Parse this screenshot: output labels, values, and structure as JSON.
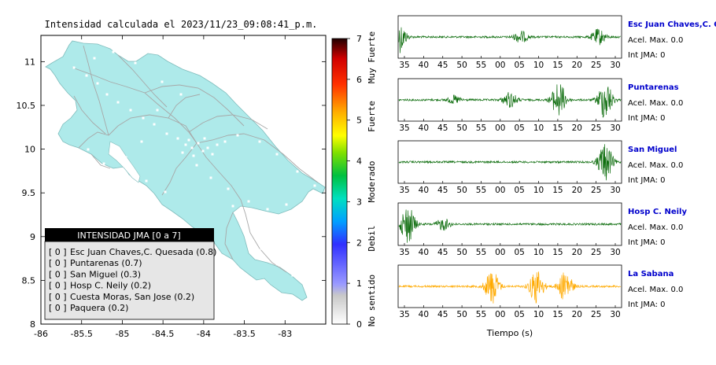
{
  "title": "Intensidad calculada el 2023/11/23_09:08:41_p.m.",
  "colors": {
    "land": "#aeeaea",
    "roads": "#a7a7a7",
    "trace_default": "#0f6e0f",
    "trace_highlight": "#ffaa00",
    "station_name": "#0000cc",
    "legend_header_bg": "#000000",
    "legend_bg": "#e6e6e6"
  },
  "map": {
    "x_ticks": [
      "-86",
      "-85.5",
      "-85",
      "-84.5",
      "-84",
      "-83.5",
      "-83"
    ],
    "y_ticks": [
      "11",
      "10.5",
      "10",
      "9.5",
      "9",
      "8.5",
      "8"
    ],
    "xlim": [
      -86,
      -82.5
    ],
    "ylim": [
      8,
      11.3
    ]
  },
  "colorbar": {
    "ticks": [
      "0",
      "1",
      "2",
      "3",
      "4",
      "5",
      "6",
      "7"
    ],
    "categories": [
      "No sentido",
      "Debil",
      "Moderado",
      "Fuerte",
      "Muy Fuerte"
    ]
  },
  "legend": {
    "header": "INTENSIDAD JMA [0 a 7]",
    "items": [
      {
        "badge": "[ 0 ]",
        "text": "Esc Juan Chaves,C. Quesada (0.8)"
      },
      {
        "badge": "[ 0 ]",
        "text": "Puntarenas (0.7)"
      },
      {
        "badge": "[ 0 ]",
        "text": "San Miguel (0.3)"
      },
      {
        "badge": "[ 0 ]",
        "text": "Hosp C. Neily (0.2)"
      },
      {
        "badge": "[ 0 ]",
        "text": "Cuesta Moras, San Jose (0.2)"
      },
      {
        "badge": "[ 0 ]",
        "text": "Paquera (0.2)"
      }
    ]
  },
  "chart_data": {
    "type": "line",
    "xlabel": "Tiempo (s)",
    "x_tick_labels": [
      "35",
      "40",
      "45",
      "50",
      "55",
      "00",
      "05",
      "10",
      "15",
      "20",
      "25",
      "30"
    ],
    "series": [
      {
        "name": "Esc Juan Chaves,C. Qu",
        "acel_label": "Acel. Max. 0.0",
        "int_label": "Int JMA: 0",
        "bursts": [
          [
            0.0,
            0.8
          ],
          [
            0.55,
            0.3
          ],
          [
            0.9,
            0.4
          ]
        ]
      },
      {
        "name": "Puntarenas",
        "acel_label": "Acel. Max. 0.0",
        "int_label": "Int JMA: 0",
        "bursts": [
          [
            0.25,
            0.2
          ],
          [
            0.5,
            0.4
          ],
          [
            0.72,
            0.9
          ],
          [
            0.93,
            1.0
          ]
        ]
      },
      {
        "name": "San Miguel",
        "acel_label": "Acel. Max. 0.0",
        "int_label": "Int JMA: 0",
        "bursts": [
          [
            0.93,
            1.0
          ]
        ]
      },
      {
        "name": "Hosp C. Neily",
        "acel_label": "Acel. Max. 0.0",
        "int_label": "Int JMA: 0",
        "bursts": [
          [
            0.04,
            1.0
          ],
          [
            0.2,
            0.3
          ]
        ]
      },
      {
        "name": "La Sabana",
        "acel_label": "Acel. Max. 0.0",
        "int_label": "Int JMA: 0",
        "bursts": [
          [
            0.42,
            0.9
          ],
          [
            0.62,
            0.9
          ],
          [
            0.75,
            0.8
          ]
        ]
      }
    ]
  }
}
